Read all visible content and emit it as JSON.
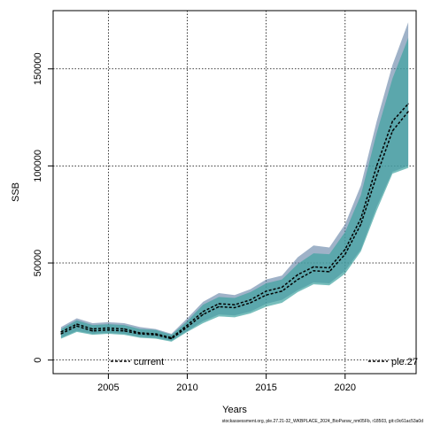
{
  "chart_data": {
    "type": "area",
    "xlabel": "Years",
    "ylabel": "SSB",
    "footnote": "stockassessment.org, ple.27.21-32_WKBPLACE_2024_BioParsw_nm05Fb, r18503, git:c9c61ac53a0d",
    "xlim": [
      2001.5,
      2024.5
    ],
    "ylim": [
      -7000,
      180000
    ],
    "grid": true,
    "x_ticks": [
      2005,
      2010,
      2015,
      2020
    ],
    "x_tick_labels": [
      "2005",
      "2010",
      "2015",
      "2020"
    ],
    "y_ticks": [
      0,
      50000,
      100000,
      150000
    ],
    "y_tick_labels": [
      "0",
      "50000",
      "100000",
      "150000"
    ],
    "legend": [
      {
        "label": "current",
        "position": "bottom-left",
        "color": "#000000",
        "style": "dashed"
      },
      {
        "label": "ple.27",
        "position": "bottom-right",
        "color": "#000000",
        "style": "dashed"
      }
    ],
    "x": [
      2002,
      2003,
      2004,
      2005,
      2006,
      2007,
      2008,
      2009,
      2010,
      2011,
      2012,
      2013,
      2014,
      2015,
      2016,
      2017,
      2018,
      2019,
      2020,
      2021,
      2022,
      2023,
      2024
    ],
    "series": [
      {
        "name": "current",
        "color": "#000000",
        "band_color": "#5f7fa3",
        "values": [
          14500,
          18500,
          16000,
          16500,
          16000,
          14000,
          13500,
          11500,
          18000,
          25000,
          29000,
          28500,
          31000,
          35500,
          37500,
          44000,
          48000,
          47500,
          57000,
          73000,
          100000,
          123000,
          132000
        ],
        "lower": [
          11500,
          15000,
          13500,
          14000,
          13500,
          12000,
          11500,
          10000,
          15000,
          20000,
          23500,
          23000,
          25000,
          29000,
          31000,
          36000,
          40000,
          39500,
          46000,
          57000,
          79000,
          97000,
          100000
        ],
        "upper": [
          17000,
          21500,
          19000,
          19500,
          19000,
          17000,
          16000,
          13500,
          21500,
          30000,
          34500,
          33500,
          36500,
          41500,
          43500,
          53000,
          59000,
          58000,
          70000,
          90000,
          123000,
          152000,
          174000
        ]
      },
      {
        "name": "ple.27",
        "color": "#000000",
        "band_color": "#3fa3a0",
        "values": [
          13500,
          17500,
          15000,
          15500,
          15000,
          13500,
          13000,
          11000,
          17000,
          23500,
          27500,
          27000,
          29500,
          33500,
          35500,
          41500,
          46000,
          45500,
          54500,
          70000,
          95000,
          118000,
          128000
        ],
        "lower": [
          11000,
          14500,
          13000,
          13500,
          13000,
          11500,
          11000,
          9500,
          14500,
          19000,
          22500,
          22000,
          24000,
          27500,
          29500,
          35000,
          39000,
          38500,
          44500,
          56000,
          77000,
          96000,
          99000
        ],
        "upper": [
          16000,
          20500,
          18000,
          18500,
          18000,
          16000,
          15500,
          13000,
          20000,
          28500,
          32500,
          32000,
          35000,
          39500,
          41500,
          49500,
          55000,
          54500,
          66000,
          85000,
          117000,
          145000,
          166000
        ]
      }
    ]
  }
}
